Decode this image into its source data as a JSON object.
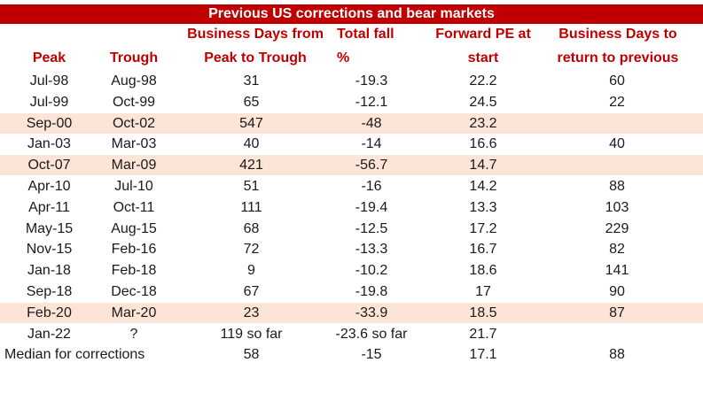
{
  "title": "Previous US corrections and bear markets",
  "headers": {
    "peak": "Peak",
    "trough": "Trough",
    "days_line1": "Business Days from",
    "days_line2": "Peak to Trough",
    "fall_line1": "Total fall",
    "fall_line2": "%",
    "pe_line1": "Forward PE at",
    "pe_line2": "start",
    "ret_line1": "Business Days to",
    "ret_line2": "return to previous"
  },
  "colors": {
    "accent": "#c00000",
    "highlight": "#fce4d6"
  },
  "rows": [
    {
      "peak": "Jul-98",
      "trough": "Aug-98",
      "days": "31",
      "fall": "-19.3",
      "pe": "22.2",
      "ret": "60",
      "highlight": false
    },
    {
      "peak": "Jul-99",
      "trough": "Oct-99",
      "days": "65",
      "fall": "-12.1",
      "pe": "24.5",
      "ret": "22",
      "highlight": false
    },
    {
      "peak": "Sep-00",
      "trough": "Oct-02",
      "days": "547",
      "fall": "-48",
      "pe": "23.2",
      "ret": "",
      "highlight": true
    },
    {
      "peak": "Jan-03",
      "trough": "Mar-03",
      "days": "40",
      "fall": "-14",
      "pe": "16.6",
      "ret": "40",
      "highlight": false
    },
    {
      "peak": "Oct-07",
      "trough": "Mar-09",
      "days": "421",
      "fall": "-56.7",
      "pe": "14.7",
      "ret": "",
      "highlight": true
    },
    {
      "peak": "Apr-10",
      "trough": "Jul-10",
      "days": "51",
      "fall": "-16",
      "pe": "14.2",
      "ret": "88",
      "highlight": false
    },
    {
      "peak": "Apr-11",
      "trough": "Oct-11",
      "days": "111",
      "fall": "-19.4",
      "pe": "13.3",
      "ret": "103",
      "highlight": false
    },
    {
      "peak": "May-15",
      "trough": "Aug-15",
      "days": "68",
      "fall": "-12.5",
      "pe": "17.2",
      "ret": "229",
      "highlight": false
    },
    {
      "peak": "Nov-15",
      "trough": "Feb-16",
      "days": "72",
      "fall": "-13.3",
      "pe": "16.7",
      "ret": "82",
      "highlight": false
    },
    {
      "peak": "Jan-18",
      "trough": "Feb-18",
      "days": "9",
      "fall": "-10.2",
      "pe": "18.6",
      "ret": "141",
      "highlight": false
    },
    {
      "peak": "Sep-18",
      "trough": "Dec-18",
      "days": "67",
      "fall": "-19.8",
      "pe": "17",
      "ret": "90",
      "highlight": false
    },
    {
      "peak": "Feb-20",
      "trough": "Mar-20",
      "days": "23",
      "fall": "-33.9",
      "pe": "18.5",
      "ret": "87",
      "highlight": true
    },
    {
      "peak": "Jan-22",
      "trough": "?",
      "days": "119 so far",
      "fall": "-23.6 so far",
      "pe": "21.7",
      "ret": "",
      "highlight": false
    }
  ],
  "median": {
    "label": "Median for corrections",
    "days": "58",
    "fall": "-15",
    "pe": "17.1",
    "ret": "88"
  }
}
